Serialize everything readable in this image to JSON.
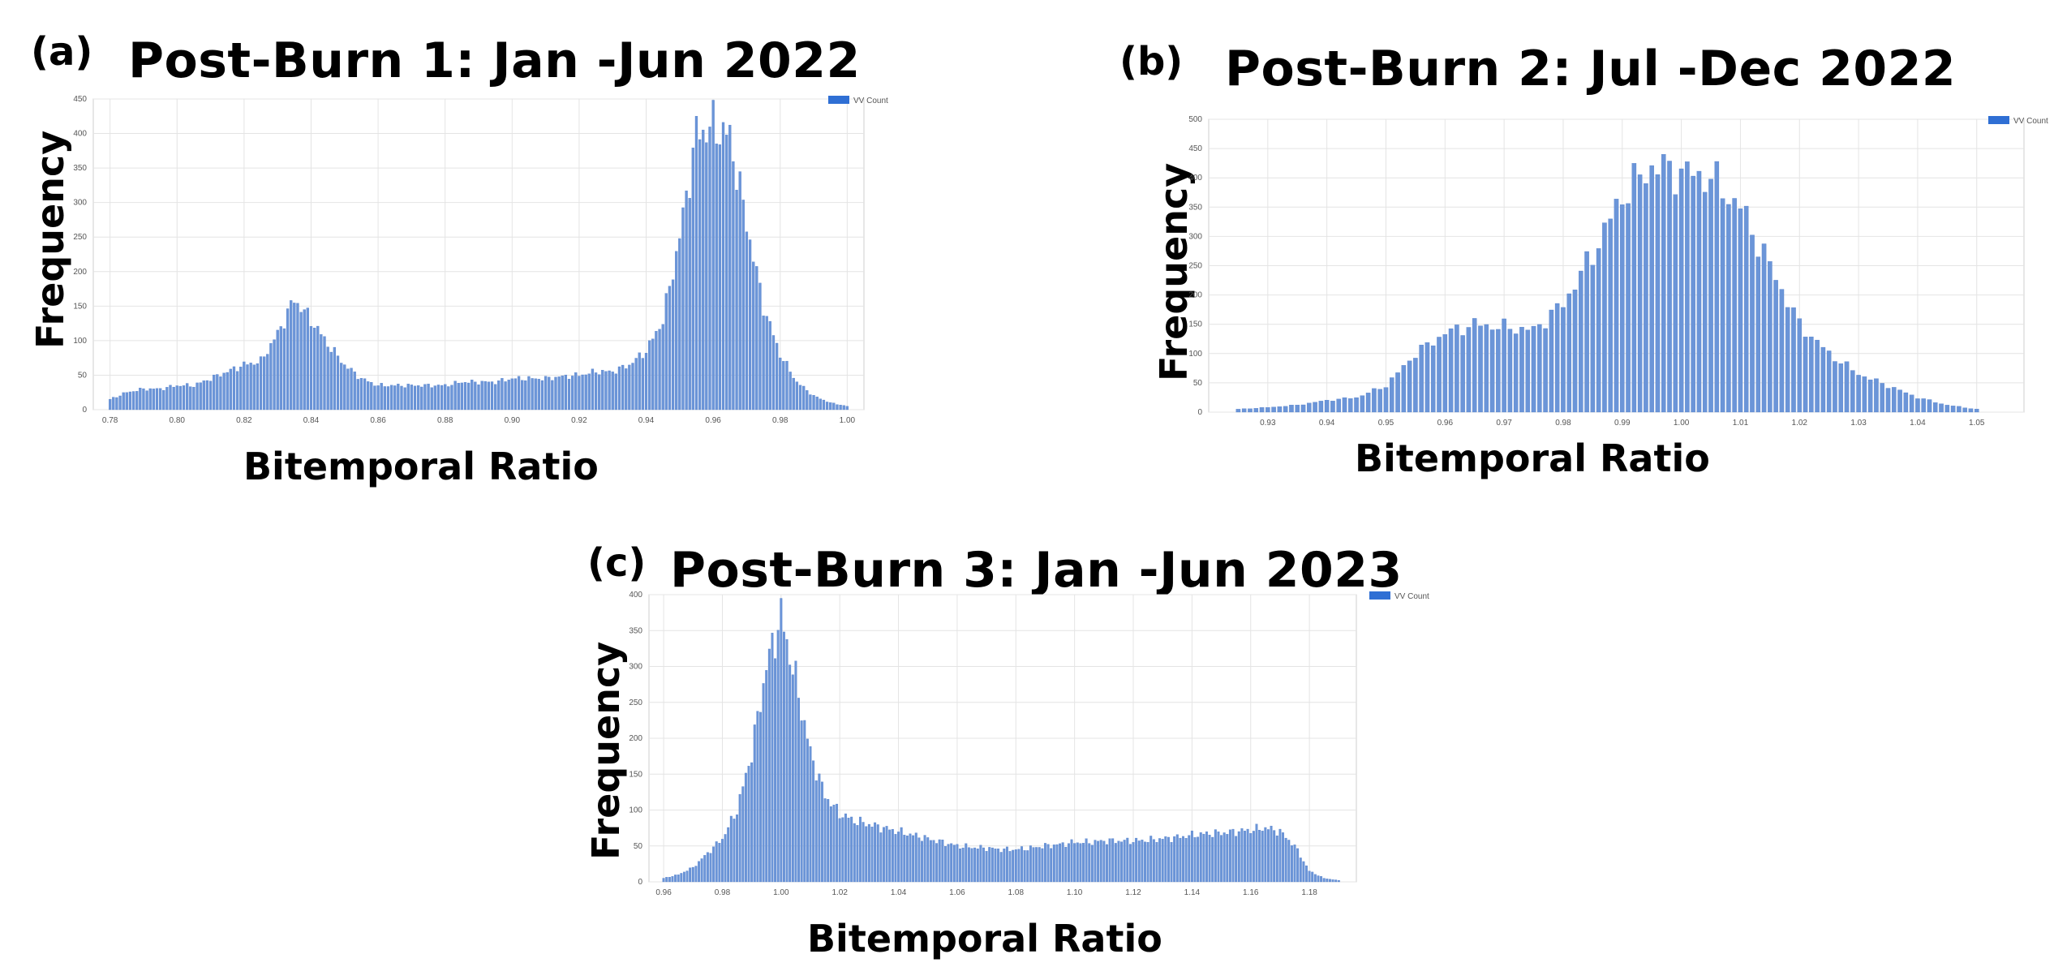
{
  "colors": {
    "bar": "#6b95d8",
    "bar_edge": "#4a78c6",
    "legend_swatch": "#2f6fd4",
    "grid": "#e4e4e4",
    "frame": "#cfcfcf"
  },
  "charts": [
    {
      "letter": "(a)",
      "title": "Post-Burn 1: Jan -Jun 2022",
      "xlabel": "Bitemporal Ratio",
      "ylabel": "Frequency",
      "legend": "VV Count",
      "ytick_labels": [
        "0",
        "50",
        "100",
        "150",
        "200",
        "250",
        "300",
        "350",
        "400",
        "450"
      ],
      "xtick_labels": [
        "0.78",
        "0.80",
        "0.82",
        "0.84",
        "0.86",
        "0.88",
        "0.90",
        "0.92",
        "0.94",
        "0.96",
        "0.98",
        "1.00"
      ]
    },
    {
      "letter": "(b)",
      "title": "Post-Burn 2: Jul -Dec 2022",
      "xlabel": "Bitemporal Ratio",
      "ylabel": "Frequency",
      "legend": "VV Count",
      "ytick_labels": [
        "0",
        "50",
        "100",
        "150",
        "200",
        "250",
        "300",
        "350",
        "400",
        "450",
        "500"
      ],
      "xtick_labels": [
        "0.93",
        "0.94",
        "0.95",
        "0.96",
        "0.97",
        "0.98",
        "0.99",
        "1.00",
        "1.01",
        "1.02",
        "1.03",
        "1.04",
        "1.05"
      ]
    },
    {
      "letter": "(c)",
      "title": "Post-Burn 3: Jan -Jun 2023",
      "xlabel": "Bitemporal Ratio",
      "ylabel": "Frequency",
      "legend": "VV Count",
      "ytick_labels": [
        "0",
        "50",
        "100",
        "150",
        "200",
        "250",
        "300",
        "350",
        "400"
      ],
      "xtick_labels": [
        "0.96",
        "0.98",
        "1.00",
        "1.02",
        "1.04",
        "1.06",
        "1.08",
        "1.10",
        "1.12",
        "1.14",
        "1.16",
        "1.18"
      ]
    }
  ],
  "chart_data": [
    {
      "type": "bar",
      "title": "Post-Burn 1: Jan -Jun 2022",
      "xlabel": "Bitemporal Ratio",
      "ylabel": "Frequency",
      "legend": [
        "VV Count"
      ],
      "legend_position": "top-right",
      "grid": true,
      "xlim": [
        0.775,
        1.005
      ],
      "ylim": [
        0,
        450
      ],
      "x": [
        0.78,
        0.785,
        0.79,
        0.795,
        0.8,
        0.805,
        0.81,
        0.815,
        0.82,
        0.825,
        0.83,
        0.835,
        0.84,
        0.845,
        0.85,
        0.855,
        0.86,
        0.865,
        0.87,
        0.875,
        0.88,
        0.885,
        0.89,
        0.895,
        0.9,
        0.905,
        0.91,
        0.915,
        0.92,
        0.925,
        0.93,
        0.935,
        0.94,
        0.945,
        0.95,
        0.955,
        0.96,
        0.965,
        0.97,
        0.975,
        0.98,
        0.985,
        0.99,
        0.995,
        1.0
      ],
      "values": [
        15,
        25,
        30,
        30,
        35,
        35,
        45,
        55,
        65,
        70,
        110,
        160,
        130,
        95,
        65,
        45,
        35,
        35,
        35,
        35,
        35,
        40,
        40,
        40,
        45,
        45,
        45,
        48,
        50,
        55,
        55,
        65,
        85,
        130,
        250,
        400,
        410,
        395,
        270,
        150,
        80,
        40,
        20,
        10,
        5
      ]
    },
    {
      "type": "bar",
      "title": "Post-Burn 2: Jul -Dec 2022",
      "xlabel": "Bitemporal Ratio",
      "ylabel": "Frequency",
      "legend": [
        "VV Count"
      ],
      "legend_position": "top-right",
      "grid": true,
      "xlim": [
        0.92,
        1.058
      ],
      "ylim": [
        0,
        500
      ],
      "x": [
        0.925,
        0.93,
        0.935,
        0.94,
        0.945,
        0.95,
        0.955,
        0.96,
        0.965,
        0.97,
        0.975,
        0.98,
        0.985,
        0.99,
        0.995,
        1.0,
        1.005,
        1.01,
        1.015,
        1.02,
        1.025,
        1.03,
        1.035,
        1.04,
        1.045,
        1.05
      ],
      "values": [
        5,
        8,
        12,
        20,
        25,
        45,
        100,
        135,
        150,
        145,
        140,
        185,
        270,
        370,
        420,
        410,
        400,
        350,
        250,
        150,
        100,
        65,
        45,
        25,
        12,
        5
      ]
    },
    {
      "type": "bar",
      "title": "Post-Burn 3: Jan -Jun 2023",
      "xlabel": "Bitemporal Ratio",
      "ylabel": "Frequency",
      "legend": [
        "VV Count"
      ],
      "legend_position": "top-right",
      "grid": true,
      "xlim": [
        0.955,
        1.196
      ],
      "ylim": [
        0,
        400
      ],
      "x": [
        0.96,
        0.965,
        0.97,
        0.975,
        0.98,
        0.985,
        0.99,
        0.995,
        1.0,
        1.005,
        1.01,
        1.015,
        1.02,
        1.025,
        1.03,
        1.035,
        1.04,
        1.045,
        1.05,
        1.055,
        1.06,
        1.065,
        1.07,
        1.075,
        1.08,
        1.085,
        1.09,
        1.095,
        1.1,
        1.105,
        1.11,
        1.115,
        1.12,
        1.125,
        1.13,
        1.135,
        1.14,
        1.145,
        1.15,
        1.155,
        1.16,
        1.165,
        1.17,
        1.175,
        1.18,
        1.185,
        1.19
      ],
      "values": [
        5,
        10,
        20,
        40,
        60,
        100,
        180,
        300,
        370,
        280,
        180,
        120,
        95,
        85,
        80,
        75,
        70,
        65,
        60,
        55,
        50,
        48,
        47,
        45,
        45,
        47,
        50,
        52,
        55,
        55,
        57,
        57,
        57,
        58,
        60,
        62,
        65,
        67,
        68,
        70,
        72,
        75,
        70,
        50,
        15,
        5,
        2
      ]
    }
  ]
}
